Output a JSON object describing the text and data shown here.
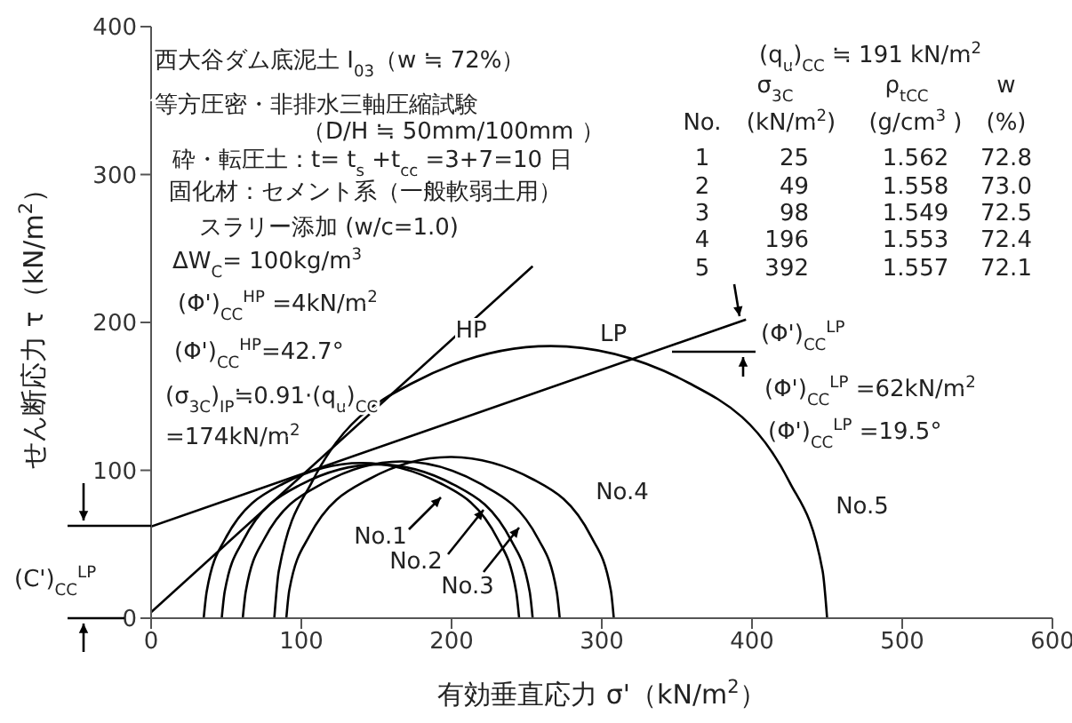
{
  "chart_data": {
    "type": "line",
    "xlabel": "有効垂直応力 σ'（kN/m$^{2}$）",
    "ylabel": "せん断応力 τ（kN/m$^{2}$）",
    "xlim": [
      0,
      600
    ],
    "xticks": [
      0,
      100,
      200,
      300,
      400,
      500,
      600
    ],
    "ylim": [
      0,
      400
    ],
    "yticks": [
      0,
      100,
      200,
      300,
      400
    ],
    "marker": "none",
    "series": [
      {
        "color": "#000000",
        "x": [
          0,
          254
        ],
        "values": [
          4,
          238
        ]
      },
      {
        "color": "#000000",
        "x": [
          0,
          396
        ],
        "values": [
          62,
          202
        ]
      },
      {
        "color": "#000000",
        "x": [
          35,
          37,
          49,
          88,
          140,
          193,
          231,
          243,
          245
        ],
        "values": [
          0,
          18,
          53,
          91,
          105,
          91,
          53,
          18,
          0
        ]
      },
      {
        "color": "#000000",
        "x": [
          47,
          49,
          61,
          99,
          151,
          202,
          240,
          252,
          254
        ],
        "values": [
          0,
          18,
          52,
          90,
          104,
          90,
          52,
          18,
          0
        ]
      },
      {
        "color": "#000000",
        "x": [
          61,
          63,
          75,
          114,
          167,
          219,
          258,
          270,
          272
        ],
        "values": [
          0,
          18,
          53,
          91,
          106,
          91,
          53,
          18,
          0
        ]
      },
      {
        "color": "#000000",
        "x": [
          90,
          92,
          105,
          145,
          199,
          254,
          293,
          306,
          308
        ],
        "values": [
          0,
          19,
          55,
          94,
          109,
          94,
          55,
          19,
          0
        ]
      },
      {
        "color": "#000000",
        "x": [
          82,
          85,
          107,
          174,
          266,
          358,
          425,
          447,
          450
        ],
        "values": [
          0,
          32,
          92,
          159,
          184,
          159,
          92,
          32,
          0
        ]
      }
    ],
    "annotations": [
      "西大谷ダム底泥土 I$_{03}$（w ≒ 72%）",
      "等方圧密・非排水三軸圧縮試験",
      "（D/H ≒ 50mm/100mm ）",
      "砕・転圧土：t= t$_{s}$ +t$_{cc}$ =3+7=10 日",
      "固化材：セメント系（一般軟弱土用）",
      "スラリー添加 (w/c=1.0)",
      "ΔW$_{C}$= 100kg/m$^{3}$",
      "(Φ')$_{CC}$$^{HP}$ =4kN/m$^{2}$",
      "(Φ')$_{CC}$$^{HP}$=42.7°",
      "(σ$_{3C}$)$_{IP}$≒0.91·(q$_{u}$)$_{CC}$",
      "=174kN/m$^{2}$",
      "(q$_{u}$)$_{CC}$ ≒ 191 kN/m$^{2}$",
      "σ$_{3C}$",
      "ρ$_{tCC}$",
      "w",
      "No.",
      "(kN/m$^{2}$)",
      "(g/cm$^{3}$ )",
      "(%)",
      "1",
      "25",
      "1.562",
      "72.8",
      "2",
      "49",
      "1.558",
      "73.0",
      "3",
      "98",
      "1.549",
      "72.5",
      "4",
      "196",
      "1.553",
      "72.4",
      "5",
      "392",
      "1.557",
      "72.1",
      "(Φ')$_{CC}$$^{LP}$",
      "(Φ')$_{CC}$$^{LP}$ =62kN/m$^{2}$",
      "(Φ')$_{CC}$$^{LP}$ =19.5°",
      "(C')$_{CC}$$^{LP}$",
      "HP",
      "LP",
      "No.1",
      "No.2",
      "No.3",
      "No.4",
      "No.5"
    ]
  }
}
